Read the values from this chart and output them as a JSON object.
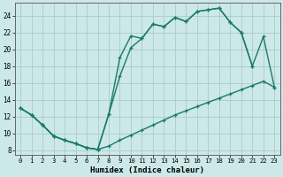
{
  "xlabel": "Humidex (Indice chaleur)",
  "bg_color": "#cce8e8",
  "grid_color": "#aacccc",
  "line_color": "#1a7a6a",
  "xlim": [
    -0.5,
    23.5
  ],
  "ylim": [
    7.5,
    25.5
  ],
  "xticks": [
    0,
    1,
    2,
    3,
    4,
    5,
    6,
    7,
    8,
    9,
    10,
    11,
    12,
    13,
    14,
    15,
    16,
    17,
    18,
    19,
    20,
    21,
    22,
    23
  ],
  "yticks": [
    8,
    10,
    12,
    14,
    16,
    18,
    20,
    22,
    24
  ],
  "line1_x": [
    0,
    1,
    2,
    3,
    4,
    5,
    6,
    7,
    8,
    9,
    10,
    11,
    12,
    13,
    14,
    15,
    16,
    17,
    18,
    19,
    20,
    21
  ],
  "line1_y": [
    13.0,
    12.2,
    11.0,
    9.7,
    9.2,
    8.8,
    8.3,
    8.1,
    12.3,
    19.0,
    21.6,
    21.3,
    23.0,
    22.7,
    23.8,
    23.3,
    24.5,
    24.7,
    24.9,
    23.2,
    22.0,
    18.0
  ],
  "line2_x": [
    0,
    1,
    2,
    3,
    4,
    5,
    6,
    7,
    8,
    9,
    10,
    11,
    12,
    13,
    14,
    15,
    16,
    17,
    18,
    19,
    20,
    21,
    22,
    23
  ],
  "line2_y": [
    13.0,
    12.2,
    11.0,
    9.7,
    9.2,
    8.8,
    8.3,
    8.1,
    8.5,
    9.2,
    9.8,
    10.4,
    11.0,
    11.6,
    12.2,
    12.7,
    13.2,
    13.7,
    14.2,
    14.7,
    15.2,
    15.7,
    16.2,
    15.5
  ],
  "line3_x": [
    0,
    1,
    2,
    3,
    4,
    5,
    6,
    7,
    8,
    9,
    10,
    11,
    12,
    13,
    14,
    15,
    16,
    17,
    18,
    19,
    20,
    21,
    22,
    23
  ],
  "line3_y": [
    13.0,
    12.2,
    11.0,
    9.7,
    9.2,
    8.8,
    8.3,
    8.1,
    12.3,
    16.8,
    20.2,
    21.3,
    23.0,
    22.7,
    23.8,
    23.3,
    24.5,
    24.7,
    24.9,
    23.2,
    22.0,
    18.0,
    21.5,
    15.5
  ]
}
